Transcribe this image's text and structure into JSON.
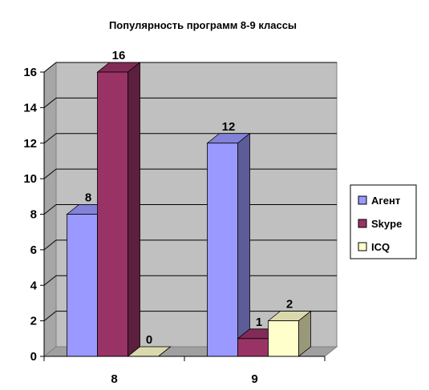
{
  "chart_data": {
    "type": "bar",
    "title": "Популярность программ 8-9 классы",
    "categories": [
      "8",
      "9"
    ],
    "series": [
      {
        "name": "Агент",
        "values": [
          8,
          12
        ],
        "color": "#9999FF"
      },
      {
        "name": "Skype",
        "values": [
          16,
          1
        ],
        "color": "#993366"
      },
      {
        "name": "ICQ",
        "values": [
          0,
          2
        ],
        "color": "#FFFFCC"
      }
    ],
    "ylim": [
      0,
      16
    ],
    "yticks": [
      "0",
      "2",
      "4",
      "6",
      "8",
      "10",
      "12",
      "14",
      "16"
    ],
    "grid": true,
    "legend": "right",
    "wall_color": "#C0C0C0"
  }
}
